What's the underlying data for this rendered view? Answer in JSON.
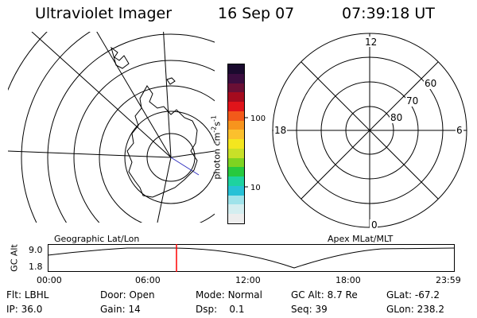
{
  "header": {
    "instrument": "Ultraviolet Imager",
    "date": "16 Sep 07",
    "time": "07:39:18 UT"
  },
  "colorbar": {
    "unit_label": "photon cm",
    "unit_exp1": "-2",
    "unit_s": "s",
    "unit_exp2": "-1",
    "tick_high": "100",
    "tick_low": "10",
    "colors_top_to_bottom": [
      "#1a0a2e",
      "#3b0d3f",
      "#6a0f35",
      "#a50b1e",
      "#e0141a",
      "#f25a1a",
      "#f7941d",
      "#fbc02d",
      "#f4e61f",
      "#c8e028",
      "#7ed321",
      "#27c93f",
      "#1ed2a0",
      "#27c1d6",
      "#9fe3ea",
      "#d4eef0",
      "#ededed"
    ]
  },
  "geo_map": {
    "label": "Geographic Lat/Lon"
  },
  "polar_plot": {
    "label": "Apex MLat/MLT",
    "labels": {
      "top": "12",
      "left": "18",
      "right": "6",
      "bottom": "0"
    },
    "lat_labels": [
      "60",
      "70",
      "80"
    ]
  },
  "altitude_strip": {
    "ylabel": "GC Alt",
    "ymax": "9.0",
    "ymin": "1.8",
    "xticks": [
      "00:00",
      "06:00",
      "12:00",
      "18:00",
      "23:59"
    ],
    "cursor_color": "#ff0000"
  },
  "info": {
    "flt_label": "Flt:",
    "flt": "LBHL",
    "ip_label": "IP:",
    "ip": "36.0",
    "door_label": "Door:",
    "door": "Open",
    "gain_label": "Gain:",
    "gain": "14",
    "mode_label": "Mode:",
    "mode": "Normal",
    "dsp_label": "Dsp:",
    "dsp": "0.1",
    "gcalt_label": "GC Alt:",
    "gcalt": "8.7 Re",
    "seq_label": "Seq:",
    "seq": "39",
    "glat_label": "GLat:",
    "glat": "-67.2",
    "glon_label": "GLon:",
    "glon": "238.2"
  }
}
